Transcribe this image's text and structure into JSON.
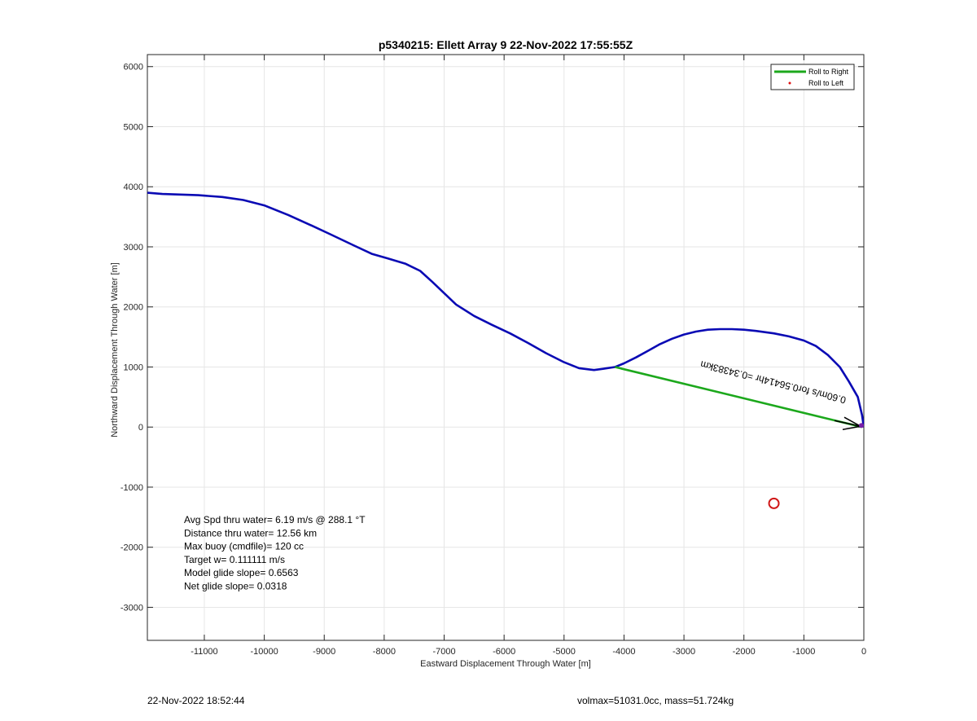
{
  "footer": {
    "timestamp": "22-Nov-2022 18:52:44",
    "mass_info": "volmax=51031.0cc, mass=51.724kg"
  },
  "chart_data": {
    "type": "line",
    "title": "p5340215: Ellett Array 9 22-Nov-2022 17:55:55Z",
    "xlabel": "Eastward Displacement Through Water [m]",
    "ylabel": "Northward Displacement Through Water [m]",
    "xlim": [
      -11950,
      0
    ],
    "ylim": [
      -3550,
      6200
    ],
    "xticks": [
      -11000,
      -10000,
      -9000,
      -8000,
      -7000,
      -6000,
      -5000,
      -4000,
      -3000,
      -2000,
      -1000,
      0
    ],
    "yticks": [
      -3000,
      -2000,
      -1000,
      0,
      1000,
      2000,
      3000,
      4000,
      5000,
      6000
    ],
    "grid": true,
    "colors": {
      "track": "#0a0ab4",
      "roll_right": "#1ca81c",
      "roll_left": "#e01010",
      "target": "#d01818",
      "arrow": "#000000"
    },
    "legend": {
      "position": "top-right",
      "entries": [
        {
          "label": "Roll to Right",
          "style": "line",
          "color": "#1ca81c"
        },
        {
          "label": "Roll to Left",
          "style": "dot",
          "color": "#e01010"
        }
      ]
    },
    "series": [
      {
        "style": "line",
        "color": "#0a0ab4",
        "x": [
          -11950,
          -11700,
          -11400,
          -11100,
          -10700,
          -10350,
          -10000,
          -9600,
          -9200,
          -8900,
          -8500,
          -8200,
          -7950,
          -7650,
          -7400,
          -7200,
          -7000,
          -6800,
          -6500,
          -6200,
          -5900,
          -5600,
          -5300,
          -5000,
          -4750,
          -4500,
          -4350,
          -4150,
          -4000,
          -3800,
          -3600,
          -3400,
          -3200,
          -3000,
          -2800,
          -2600,
          -2400,
          -2200,
          -2000,
          -1800,
          -1500,
          -1250,
          -1000,
          -800,
          -600,
          -400,
          -250,
          -100,
          -30,
          0
        ],
        "y": [
          3900,
          3880,
          3870,
          3860,
          3830,
          3780,
          3690,
          3530,
          3350,
          3210,
          3020,
          2880,
          2810,
          2720,
          2600,
          2420,
          2230,
          2040,
          1850,
          1700,
          1560,
          1400,
          1230,
          1080,
          980,
          950,
          970,
          1000,
          1060,
          1160,
          1270,
          1380,
          1470,
          1540,
          1590,
          1620,
          1630,
          1630,
          1620,
          1600,
          1560,
          1510,
          1440,
          1350,
          1200,
          1000,
          760,
          500,
          200,
          0
        ]
      },
      {
        "style": "line",
        "color": "#1ca81c",
        "x": [
          -4150,
          -30
        ],
        "y": [
          1000,
          0
        ]
      }
    ],
    "annotations": [
      {
        "text": "Avg Spd thru water=  6.19 m/s @ 288.1 °T"
      },
      {
        "text": "Distance thru water= 12.56 km"
      },
      {
        "text": "Max buoy (cmdfile)= 120 cc"
      },
      {
        "text": "Target w= 0.111111 m/s"
      },
      {
        "text": "Model glide slope= 0.6563"
      },
      {
        "text": "Net glide slope= 0.0318"
      }
    ],
    "rotated_label": {
      "text": "0.60m/s for0.56414hr =0.34383km",
      "x": -1500,
      "y": 800
    },
    "target_marker": {
      "x": -1500,
      "y": -1270
    },
    "end_marker": {
      "x": 0,
      "y": 0
    }
  }
}
